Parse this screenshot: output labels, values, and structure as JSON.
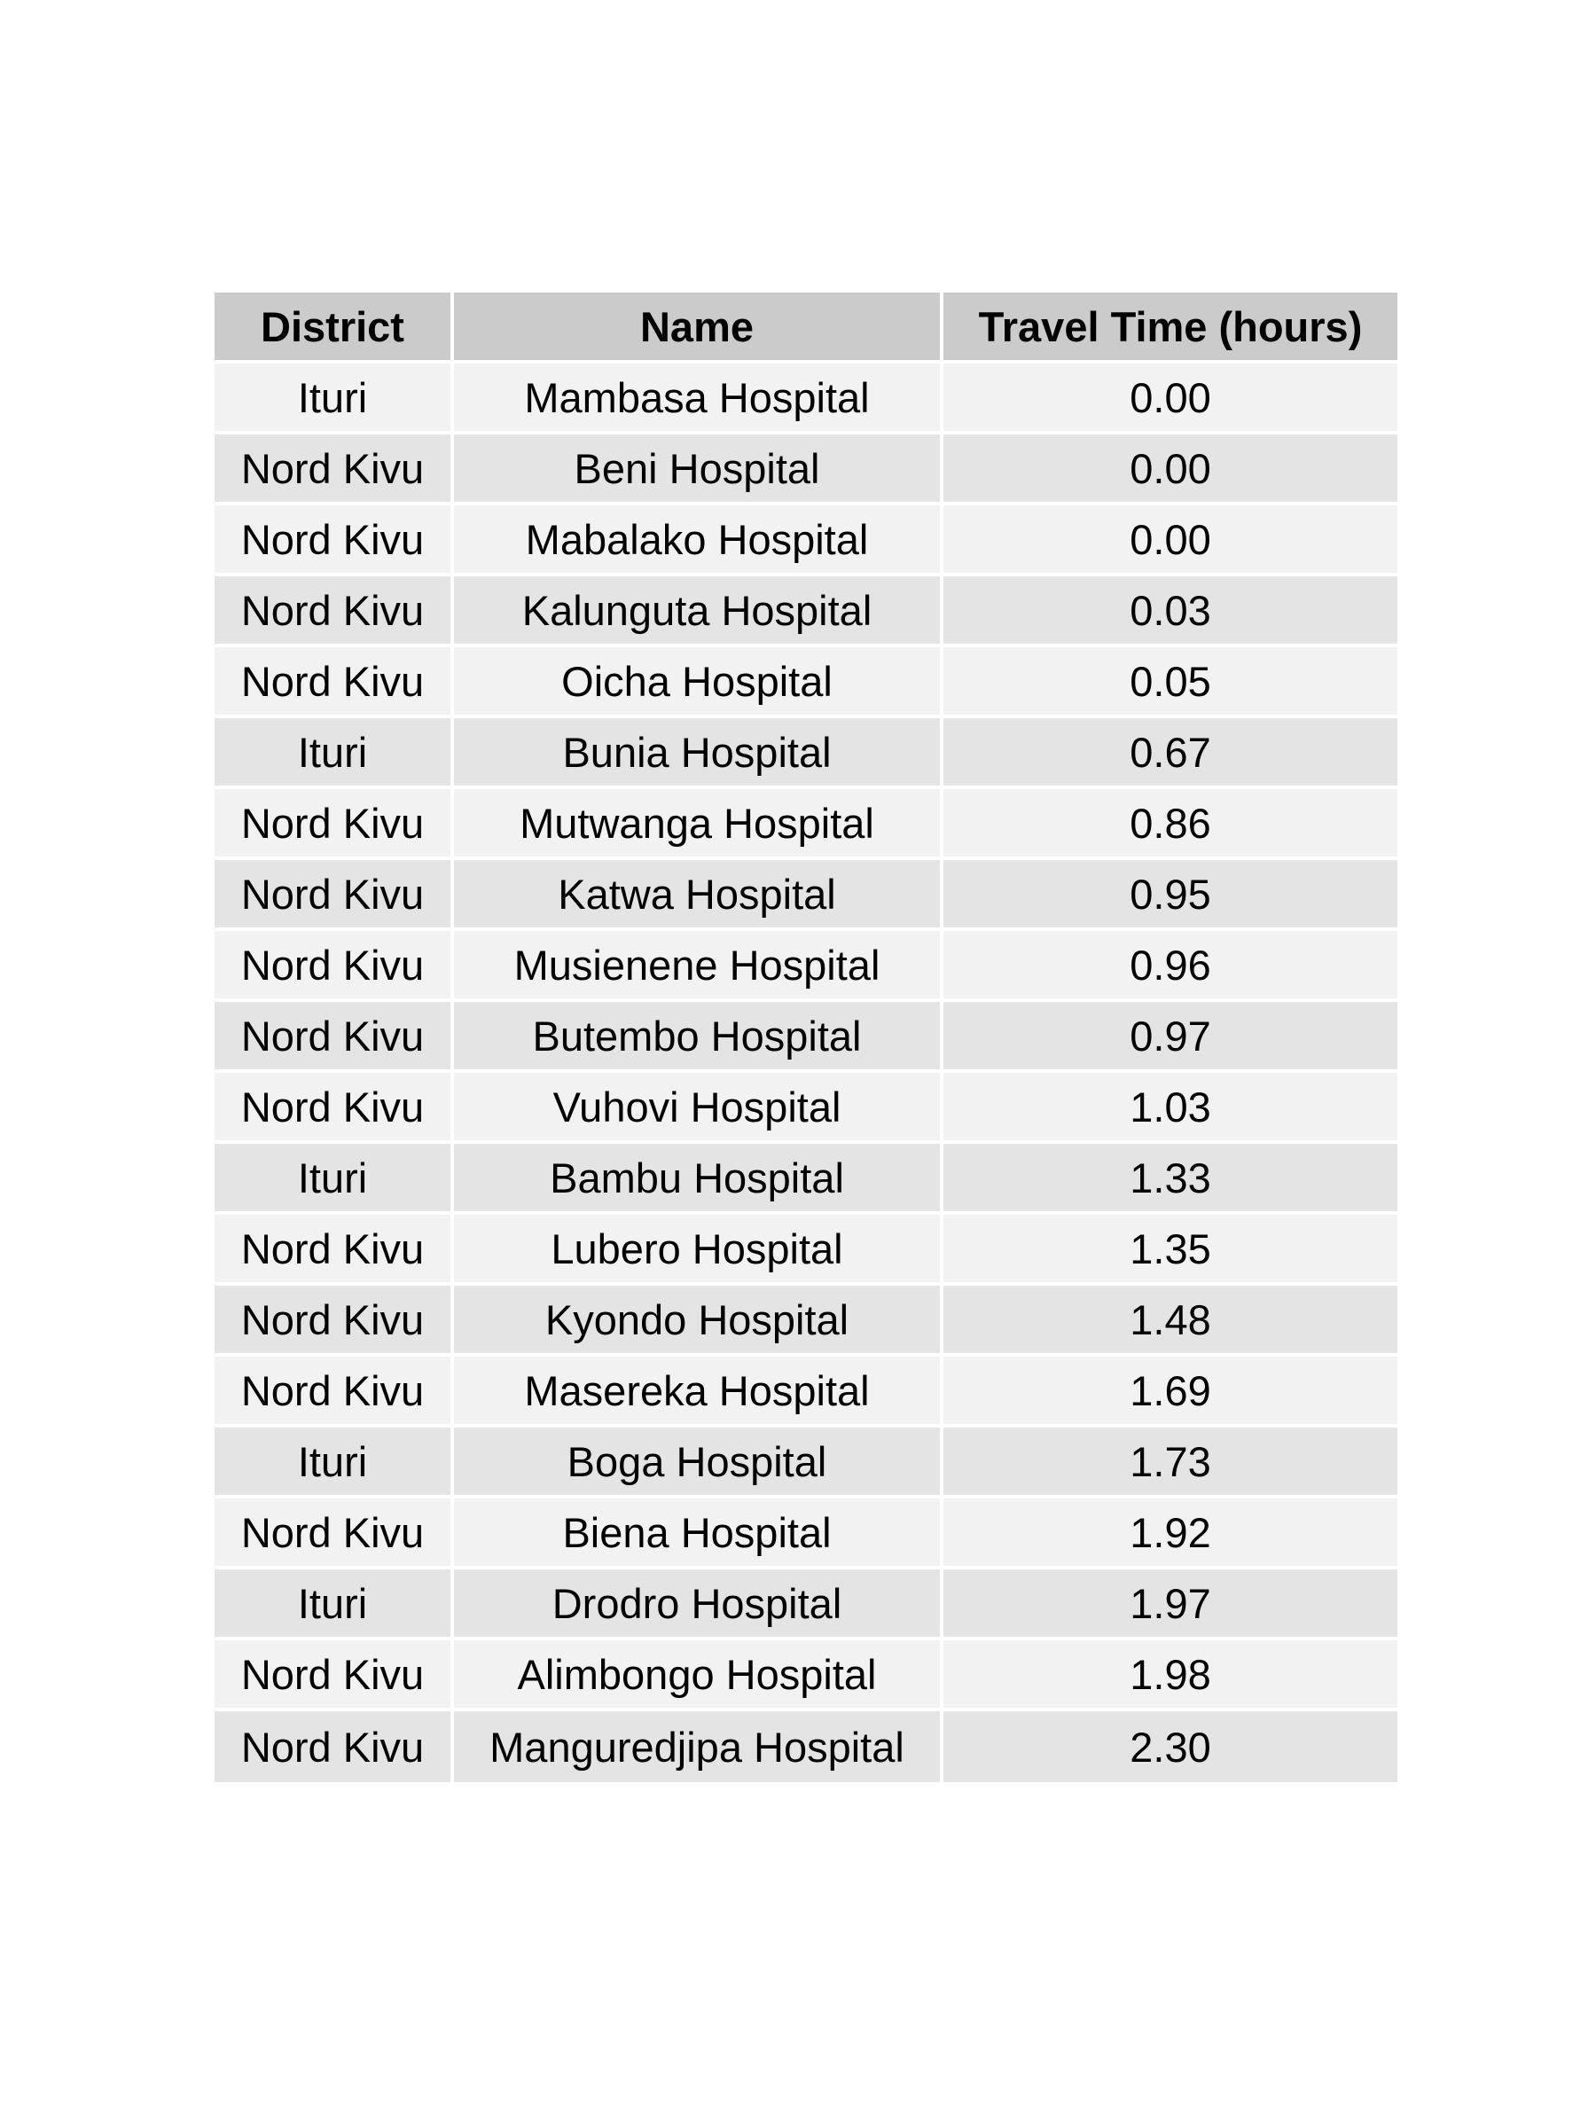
{
  "chart_data": {
    "type": "table",
    "columns": [
      "District",
      "Name",
      "Travel Time (hours)"
    ],
    "rows": [
      [
        "Ituri",
        "Mambasa Hospital",
        "0.00"
      ],
      [
        "Nord Kivu",
        "Beni Hospital",
        "0.00"
      ],
      [
        "Nord Kivu",
        "Mabalako Hospital",
        "0.00"
      ],
      [
        "Nord Kivu",
        "Kalunguta Hospital",
        "0.03"
      ],
      [
        "Nord Kivu",
        "Oicha Hospital",
        "0.05"
      ],
      [
        "Ituri",
        "Bunia Hospital",
        "0.67"
      ],
      [
        "Nord Kivu",
        "Mutwanga Hospital",
        "0.86"
      ],
      [
        "Nord Kivu",
        "Katwa Hospital",
        "0.95"
      ],
      [
        "Nord Kivu",
        "Musienene Hospital",
        "0.96"
      ],
      [
        "Nord Kivu",
        "Butembo Hospital",
        "0.97"
      ],
      [
        "Nord Kivu",
        "Vuhovi Hospital",
        "1.03"
      ],
      [
        "Ituri",
        "Bambu Hospital",
        "1.33"
      ],
      [
        "Nord Kivu",
        "Lubero Hospital",
        "1.35"
      ],
      [
        "Nord Kivu",
        "Kyondo Hospital",
        "1.48"
      ],
      [
        "Nord Kivu",
        "Masereka Hospital",
        "1.69"
      ],
      [
        "Ituri",
        "Boga Hospital",
        "1.73"
      ],
      [
        "Nord Kivu",
        "Biena Hospital",
        "1.92"
      ],
      [
        "Ituri",
        "Drodro Hospital",
        "1.97"
      ],
      [
        "Nord Kivu",
        "Alimbongo Hospital",
        "1.98"
      ],
      [
        "Nord Kivu",
        "Manguredjipa Hospital",
        "2.30"
      ]
    ]
  },
  "colors": {
    "header_bg": "#cbcbcb",
    "row_light": "#f2f2f2",
    "row_dark": "#e4e4e4"
  }
}
